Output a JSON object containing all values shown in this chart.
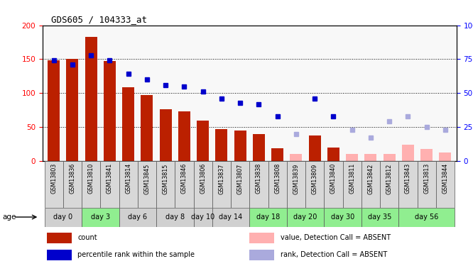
{
  "title": "GDS605 / 104333_at",
  "samples": [
    "GSM13803",
    "GSM13836",
    "GSM13810",
    "GSM13841",
    "GSM13814",
    "GSM13845",
    "GSM13815",
    "GSM13846",
    "GSM13806",
    "GSM13837",
    "GSM13807",
    "GSM13838",
    "GSM13808",
    "GSM13839",
    "GSM13809",
    "GSM13840",
    "GSM13811",
    "GSM13842",
    "GSM13812",
    "GSM13843",
    "GSM13813",
    "GSM13844"
  ],
  "day_groups": [
    {
      "label": "day 0",
      "indices": [
        0,
        1
      ],
      "color": "#d0d0d0"
    },
    {
      "label": "day 3",
      "indices": [
        2,
        3
      ],
      "color": "#90ee90"
    },
    {
      "label": "day 6",
      "indices": [
        4,
        5
      ],
      "color": "#d0d0d0"
    },
    {
      "label": "day 8",
      "indices": [
        6,
        7
      ],
      "color": "#d0d0d0"
    },
    {
      "label": "day 10",
      "indices": [
        8
      ],
      "color": "#d0d0d0"
    },
    {
      "label": "day 14",
      "indices": [
        9,
        10
      ],
      "color": "#d0d0d0"
    },
    {
      "label": "day 18",
      "indices": [
        11,
        12
      ],
      "color": "#90ee90"
    },
    {
      "label": "day 20",
      "indices": [
        13,
        14
      ],
      "color": "#90ee90"
    },
    {
      "label": "day 30",
      "indices": [
        15,
        16
      ],
      "color": "#90ee90"
    },
    {
      "label": "day 35",
      "indices": [
        17,
        18
      ],
      "color": "#90ee90"
    },
    {
      "label": "day 56",
      "indices": [
        19,
        20,
        21
      ],
      "color": "#90ee90"
    }
  ],
  "bar_values": [
    148,
    150,
    183,
    147,
    109,
    97,
    76,
    73,
    60,
    47,
    45,
    40,
    19,
    null,
    37,
    20,
    null,
    null,
    null,
    null,
    null,
    null
  ],
  "bar_absent": [
    null,
    null,
    null,
    null,
    null,
    null,
    null,
    null,
    null,
    null,
    null,
    null,
    null,
    10,
    null,
    null,
    10,
    10,
    10,
    24,
    18,
    12
  ],
  "rank_values": [
    74,
    71,
    78,
    74,
    64,
    60,
    56,
    55,
    51,
    46,
    43,
    42,
    33,
    null,
    46,
    33,
    null,
    null,
    null,
    null,
    null,
    null
  ],
  "rank_absent": [
    null,
    null,
    null,
    null,
    null,
    null,
    null,
    null,
    null,
    null,
    null,
    null,
    null,
    20,
    null,
    null,
    23,
    17,
    29,
    33,
    25,
    23
  ],
  "ylim_left": [
    0,
    200
  ],
  "ylim_right": [
    0,
    100
  ],
  "yticks_left": [
    0,
    50,
    100,
    150,
    200
  ],
  "yticks_right": [
    0,
    25,
    50,
    75,
    100
  ],
  "ytick_labels_right": [
    "0",
    "25",
    "50",
    "75",
    "100%"
  ],
  "grid_values": [
    50,
    100,
    150
  ],
  "bar_color": "#bb2000",
  "bar_absent_color": "#ffb0b0",
  "rank_color": "#0000cc",
  "rank_absent_color": "#aaaadd",
  "plot_bg": "#f8f8f8",
  "legend_items": [
    {
      "label": "count",
      "color": "#bb2000"
    },
    {
      "label": "percentile rank within the sample",
      "color": "#0000cc"
    },
    {
      "label": "value, Detection Call = ABSENT",
      "color": "#ffb0b0"
    },
    {
      "label": "rank, Detection Call = ABSENT",
      "color": "#aaaadd"
    }
  ]
}
